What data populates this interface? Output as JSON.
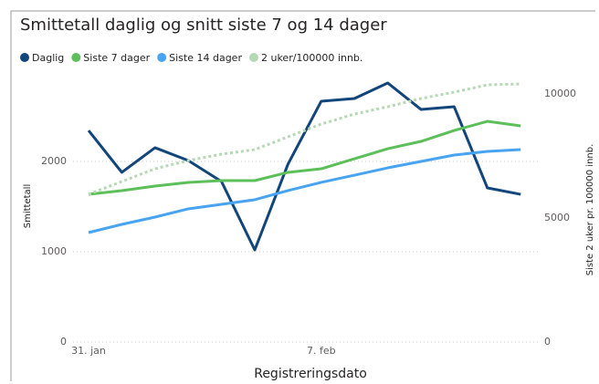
{
  "chart_data": {
    "type": "line",
    "title": "Smittetall daglig og snitt siste 7 og 14 dager",
    "x_label": "Registreringsdato",
    "y_label": "Smittetall",
    "y2_label": "Siste 2 uker pr. 100000 innb.",
    "categories": [
      "31. jan",
      null,
      null,
      null,
      null,
      null,
      null,
      "7. feb",
      null,
      null,
      null,
      null,
      null,
      null
    ],
    "series": [
      {
        "name": "Daglig",
        "color": "#12467b",
        "values": [
          2343,
          1879,
          2152,
          2010,
          1778,
          1020,
          1970,
          2667,
          2697,
          2869,
          2576,
          2606,
          1707,
          1636
        ]
      },
      {
        "name": "Siste 7 dager",
        "color": "#5cbf5a",
        "values": [
          1636,
          1677,
          1727,
          1768,
          1788,
          1788,
          1879,
          1919,
          2030,
          2141,
          2222,
          2343,
          2444,
          2394
        ]
      },
      {
        "name": "Siste 14 dager",
        "color": "#48a4f0",
        "values": [
          1212,
          1303,
          1384,
          1475,
          1525,
          1576,
          1677,
          1768,
          1848,
          1929,
          2000,
          2071,
          2111,
          2131
        ]
      },
      {
        "name": "2 uker/100000 innb.",
        "color": "#b5d9b4",
        "axis": "y2",
        "dashed": true,
        "values": [
          5956,
          6471,
          6985,
          7316,
          7574,
          7757,
          8272,
          8787,
          9191,
          9485,
          9816,
          10074,
          10368,
          10404
        ]
      }
    ],
    "ylim": [
      0,
      3000
    ],
    "yticks": [
      0,
      1000,
      2000
    ],
    "y2lim": [
      0,
      10920
    ],
    "y2ticks": [
      0,
      5000,
      10000
    ],
    "grid": true
  }
}
